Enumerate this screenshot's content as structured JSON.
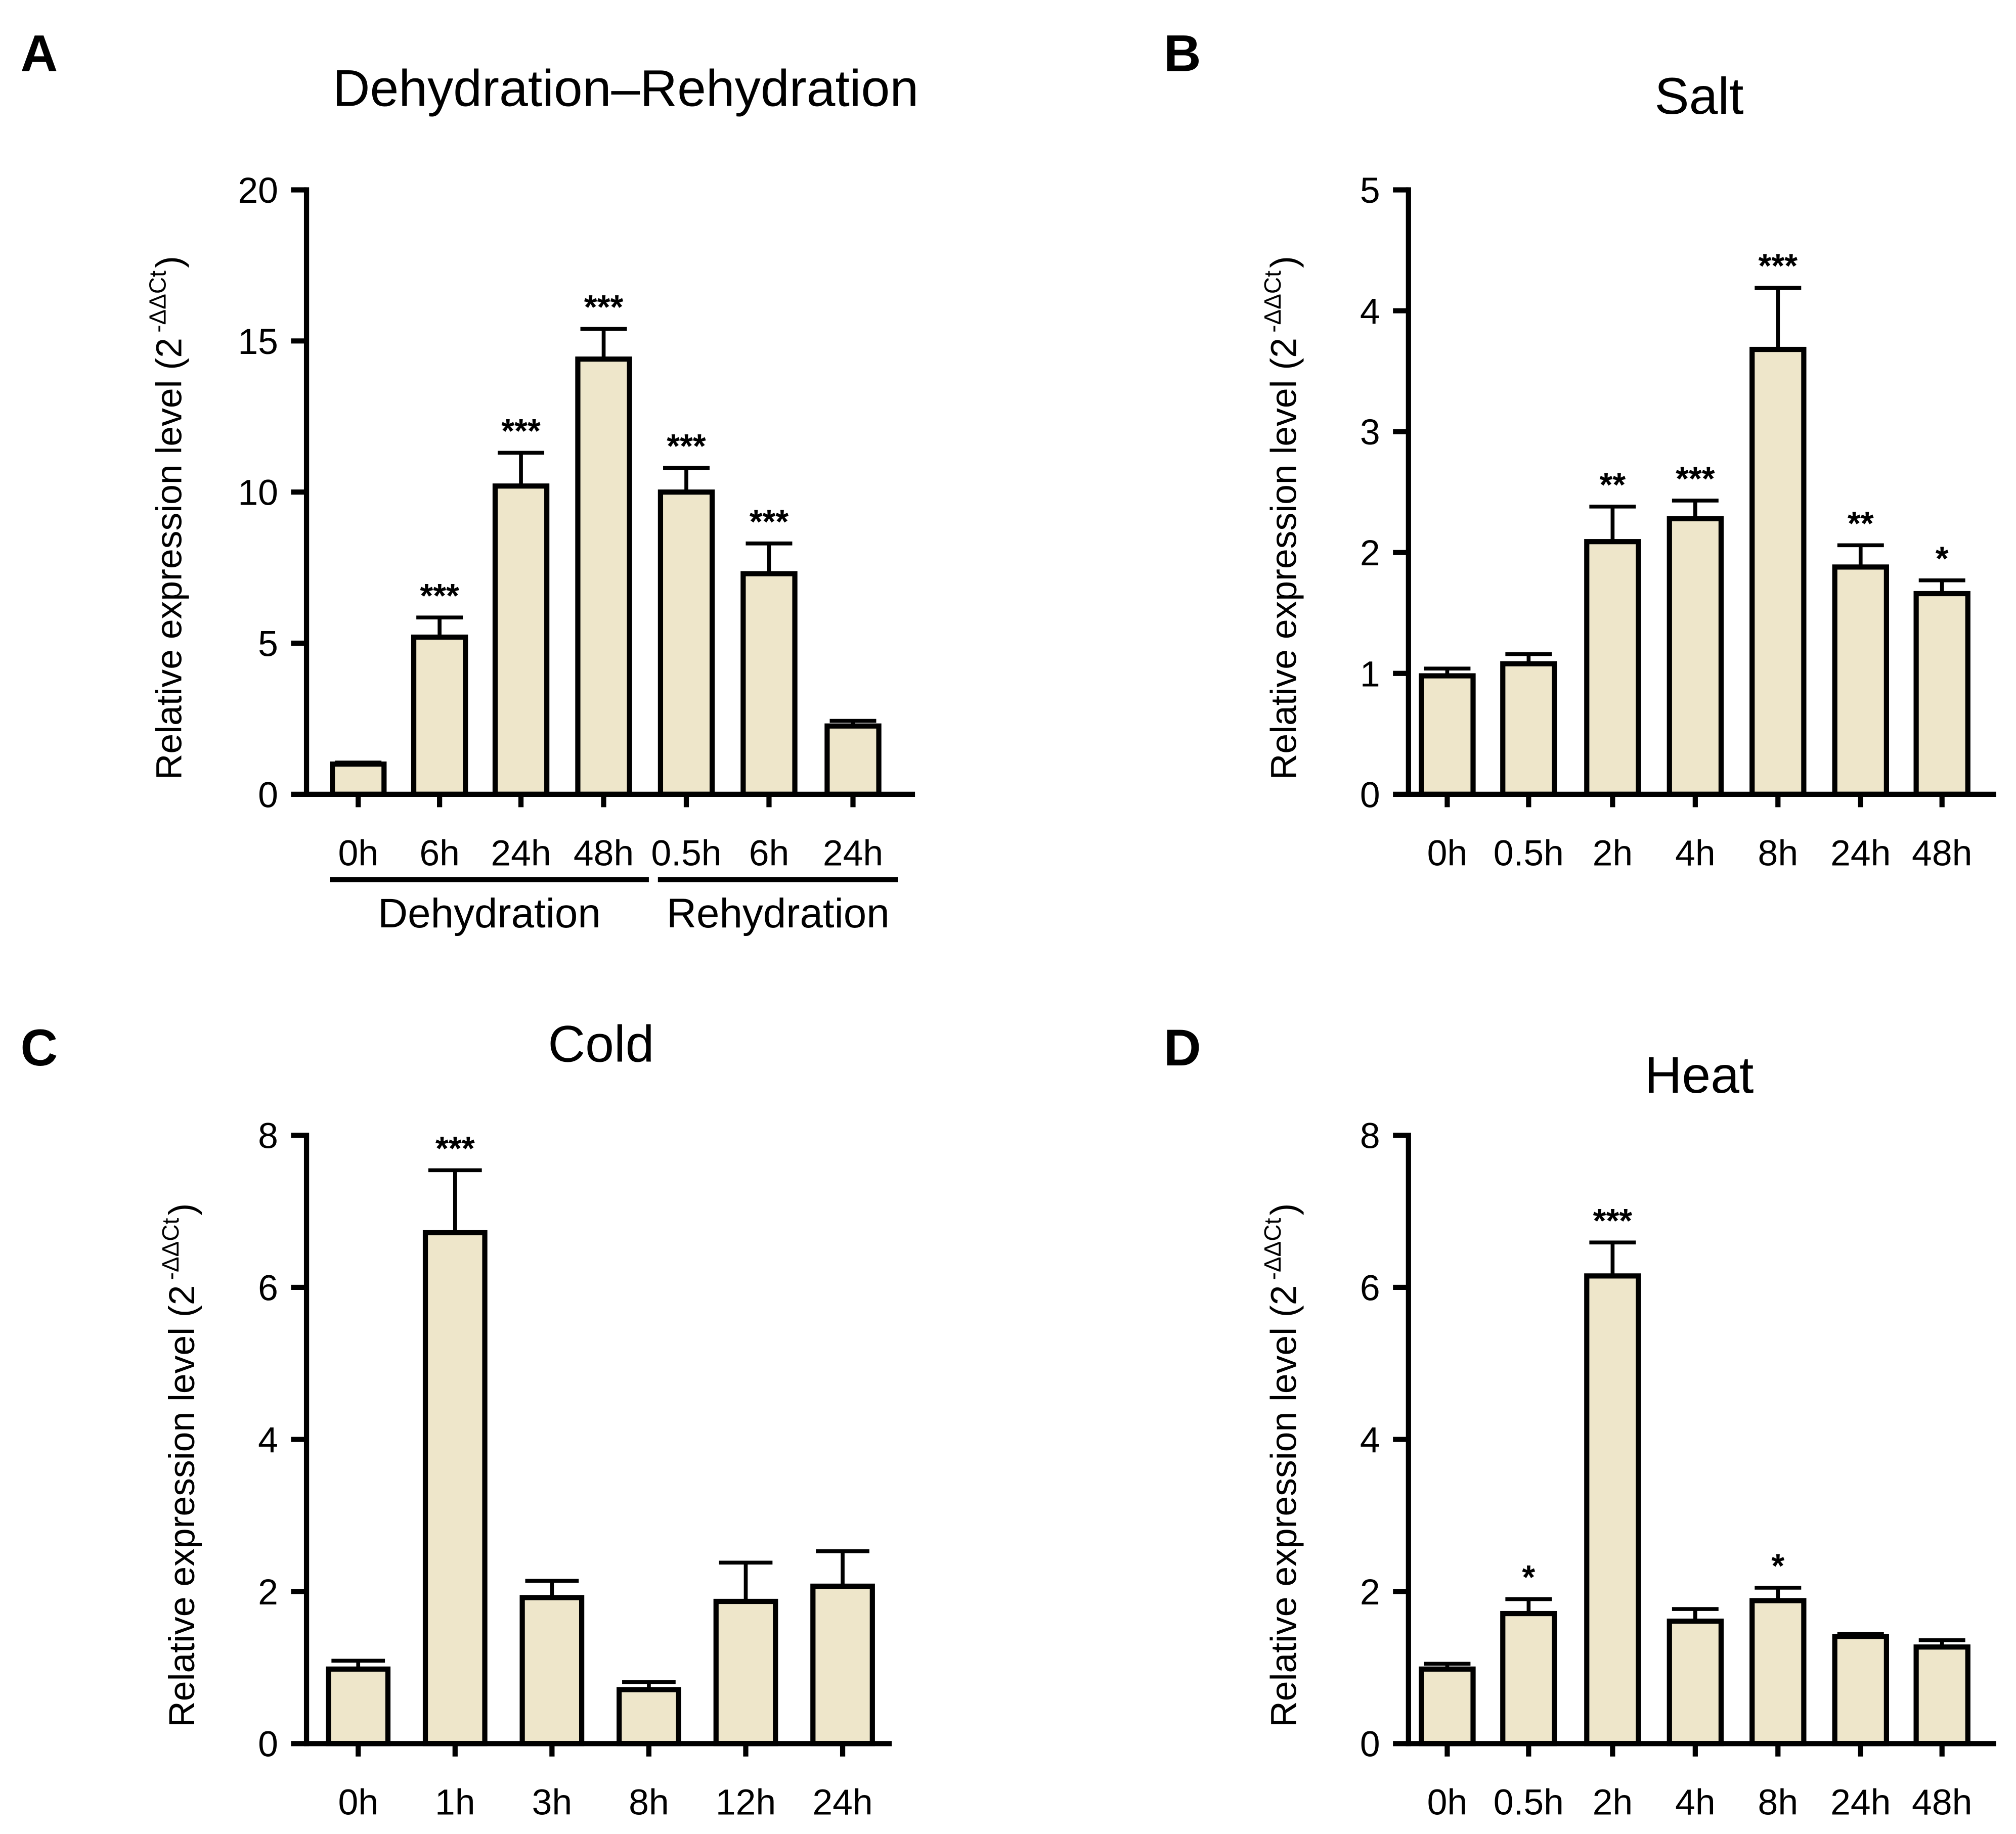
{
  "chart_data": [
    {
      "panel": "A",
      "type": "bar",
      "title": "Dehydration–Rehydration",
      "ylabel": "Relative expression level (2",
      "ylabel_sup": "-ΔΔCt",
      "ylabel_close": ")",
      "ylim": [
        0,
        20
      ],
      "yticks": [
        0,
        5,
        10,
        15,
        20
      ],
      "categories": [
        "0h",
        "6h",
        "24h",
        "48h",
        "0.5h",
        "6h",
        "24h"
      ],
      "values": [
        1.0,
        5.2,
        10.2,
        14.4,
        10.0,
        7.3,
        2.26
      ],
      "error_upper": [
        1.05,
        5.85,
        11.3,
        15.4,
        10.8,
        8.3,
        2.43
      ],
      "significance": [
        "",
        "***",
        "***",
        "***",
        "***",
        "***",
        ""
      ],
      "groups": [
        {
          "label": "Dehydration",
          "from": 0,
          "to": 3
        },
        {
          "label": "Rehydration",
          "from": 4,
          "to": 6
        }
      ],
      "bar_color": "#EEE6CA"
    },
    {
      "panel": "B",
      "type": "bar",
      "title": "Salt",
      "ylabel": "Relative expression level (2",
      "ylabel_sup": "-ΔΔCt",
      "ylabel_close": ")",
      "ylim": [
        0,
        5
      ],
      "yticks": [
        0,
        1,
        2,
        3,
        4,
        5
      ],
      "categories": [
        "0h",
        "0.5h",
        "2h",
        "4h",
        "8h",
        "24h",
        "48h"
      ],
      "values": [
        0.98,
        1.08,
        2.09,
        2.28,
        3.68,
        1.88,
        1.66
      ],
      "error_upper": [
        1.04,
        1.16,
        2.38,
        2.43,
        4.19,
        2.06,
        1.77
      ],
      "significance": [
        "",
        "",
        "**",
        "***",
        "***",
        "**",
        "*"
      ],
      "bar_color": "#EEE6CA"
    },
    {
      "panel": "C",
      "type": "bar",
      "title": "Cold",
      "ylabel": "Relative expression level (2",
      "ylabel_sup": "-ΔΔCt",
      "ylabel_close": ")",
      "ylim": [
        0,
        8
      ],
      "yticks": [
        0,
        2,
        4,
        6,
        8
      ],
      "categories": [
        "0h",
        "1h",
        "3h",
        "8h",
        "12h",
        "24h"
      ],
      "values": [
        0.98,
        6.72,
        1.92,
        0.71,
        1.87,
        2.07
      ],
      "error_upper": [
        1.09,
        7.54,
        2.14,
        0.81,
        2.38,
        2.53
      ],
      "significance": [
        "",
        "***",
        "",
        "",
        "",
        ""
      ],
      "bar_color": "#EEE6CA"
    },
    {
      "panel": "D",
      "type": "bar",
      "title": "Heat",
      "ylabel": "Relative expression level (2",
      "ylabel_sup": "-ΔΔCt",
      "ylabel_close": ")",
      "ylim": [
        0,
        8
      ],
      "yticks": [
        0,
        2,
        4,
        6,
        8
      ],
      "categories": [
        "0h",
        "0.5h",
        "2h",
        "4h",
        "8h",
        "24h",
        "48h"
      ],
      "values": [
        0.98,
        1.71,
        6.15,
        1.61,
        1.88,
        1.41,
        1.27
      ],
      "error_upper": [
        1.05,
        1.9,
        6.59,
        1.77,
        2.05,
        1.44,
        1.36
      ],
      "significance": [
        "",
        "*",
        "***",
        "",
        "*",
        "",
        ""
      ],
      "bar_color": "#EEE6CA"
    }
  ]
}
